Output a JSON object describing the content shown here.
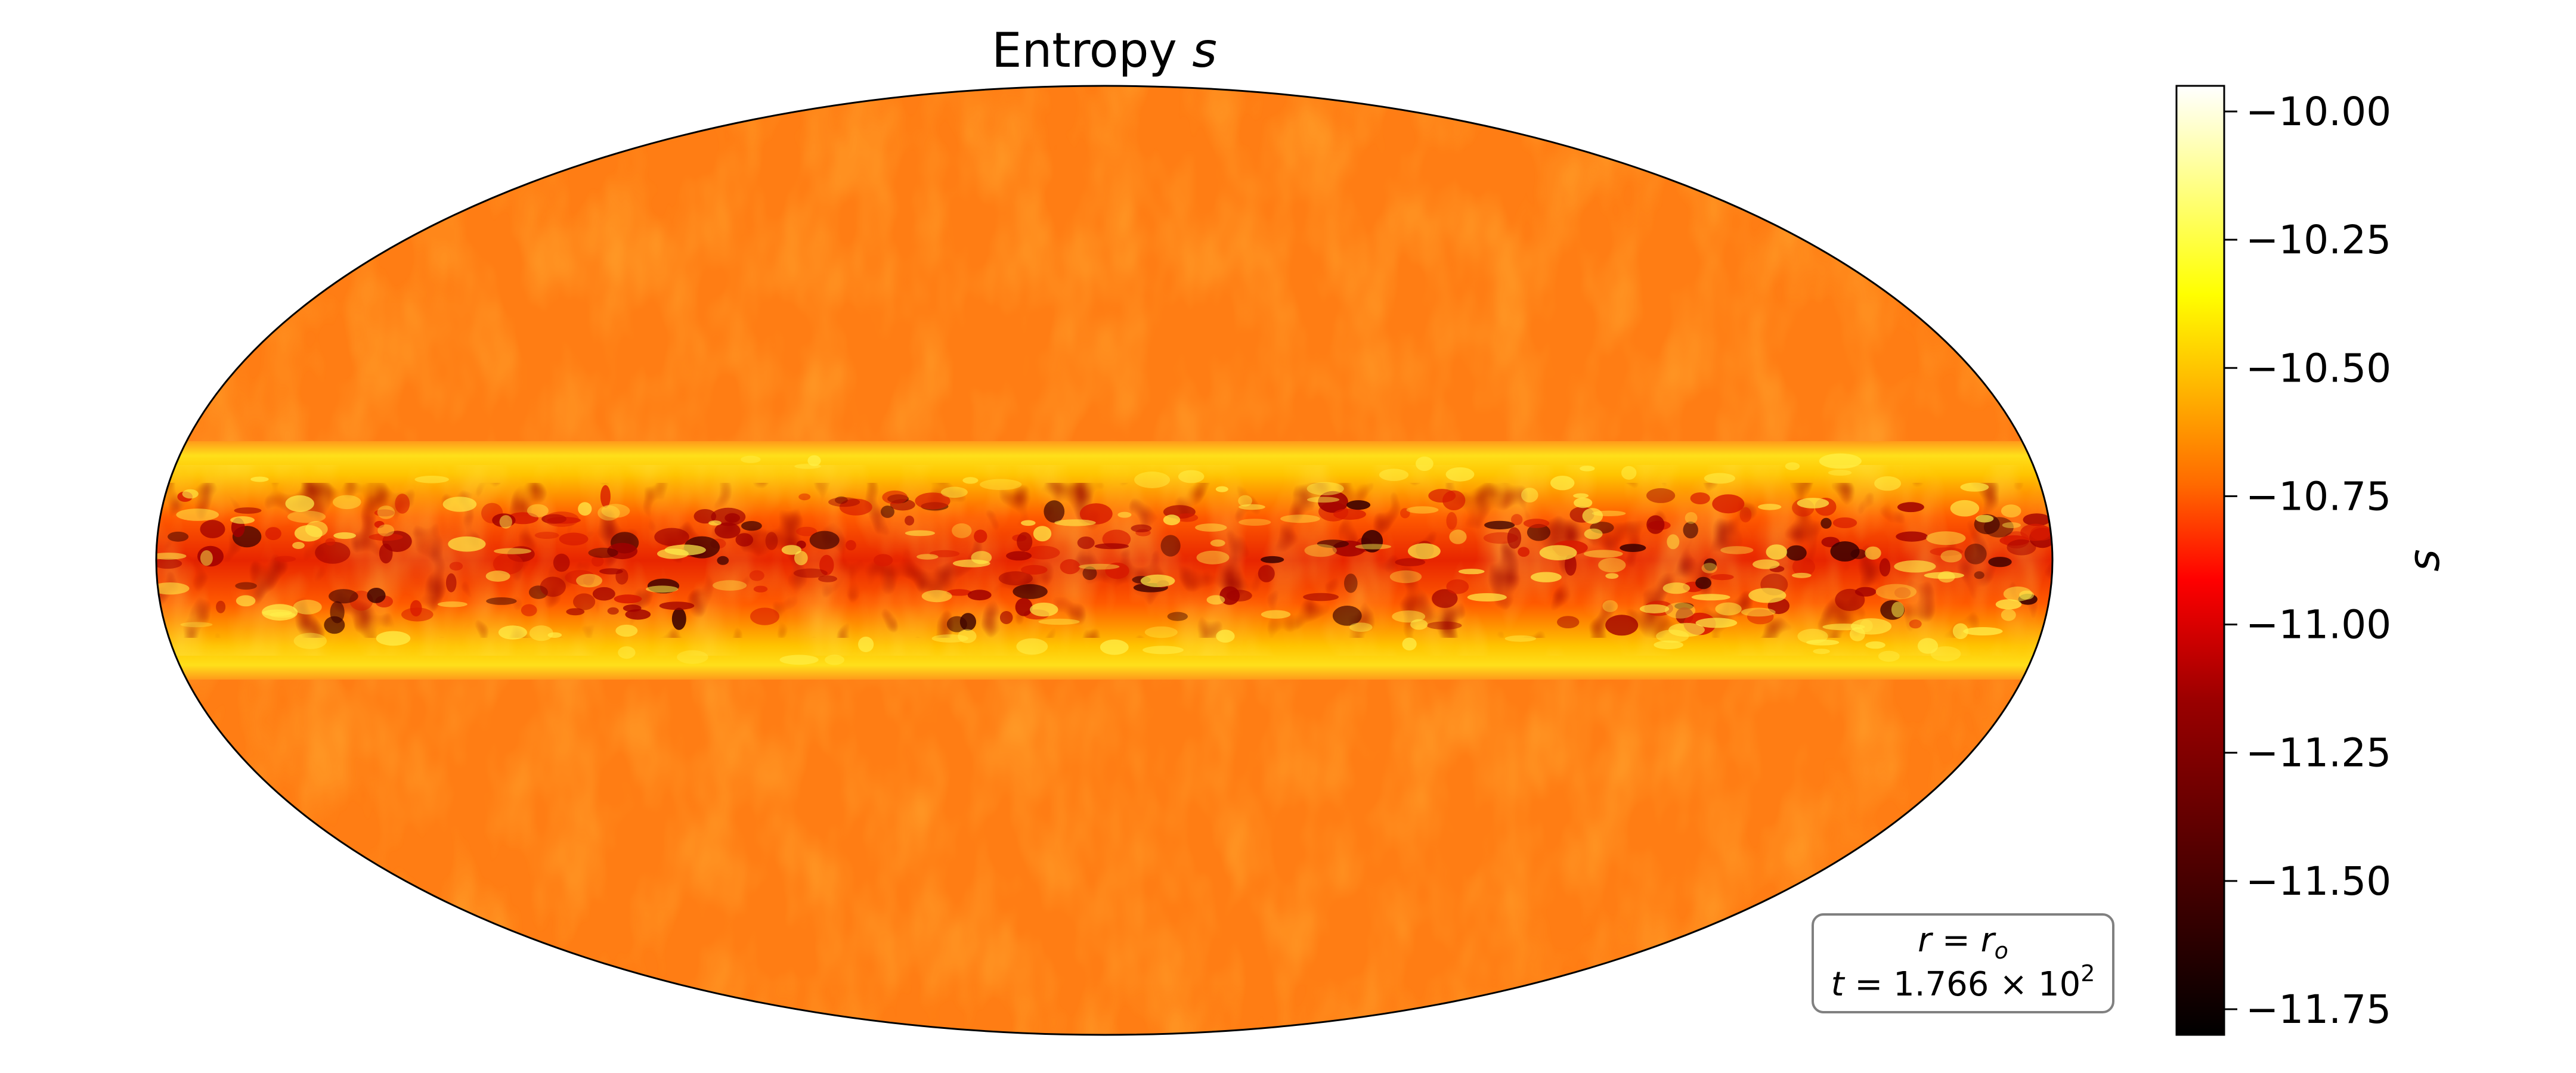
{
  "chart_data": {
    "type": "heatmap",
    "projection": "mollweide",
    "title": "Entropy",
    "title_symbol": "s",
    "colormap": "hot",
    "colorbar": {
      "label": "s",
      "vmin": -11.8,
      "vmax": -9.95,
      "ticks": [
        -10.0,
        -10.25,
        -10.5,
        -10.75,
        -11.0,
        -11.25,
        -11.5,
        -11.75
      ],
      "tick_labels": [
        "−10.00",
        "−10.25",
        "−10.50",
        "−10.75",
        "−11.00",
        "−11.25",
        "−11.50",
        "−11.75"
      ],
      "stops": [
        "#000000",
        "#7f0000",
        "#ff0000",
        "#ff7f00",
        "#ffff00",
        "#ffffff"
      ]
    },
    "field": {
      "background_value": -10.78,
      "band_latitude_range": [
        -22,
        22
      ],
      "band_edge_value": -10.5,
      "band_core_value": -11.0,
      "band_min_value": -11.75
    },
    "annotation": {
      "line1_lhs": "r",
      "line1_rhs": "r",
      "line1_sub": "o",
      "line2_lhs": "t",
      "line2_mantissa": "1.766",
      "line2_times": "×",
      "line2_base": "10",
      "line2_exp": "2"
    }
  }
}
